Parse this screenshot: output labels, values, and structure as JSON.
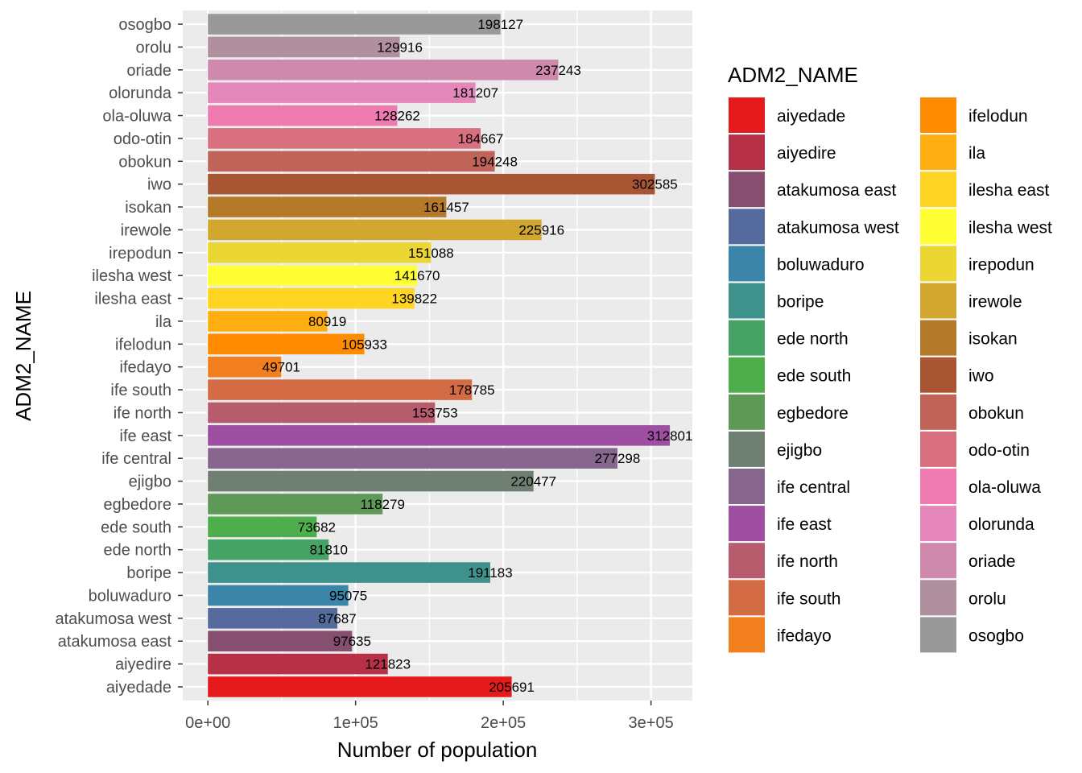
{
  "chart_data": {
    "type": "bar",
    "orientation": "horizontal",
    "title": "",
    "xlabel": "Number of population",
    "ylabel": "ADM2_NAME",
    "xlim": [
      -17000,
      328000
    ],
    "xticks": [
      {
        "value": 0,
        "label": "0e+00"
      },
      {
        "value": 100000,
        "label": "1e+05"
      },
      {
        "value": 200000,
        "label": "2e+05"
      },
      {
        "value": 300000,
        "label": "3e+05"
      }
    ],
    "grid": true,
    "legend": {
      "title": "ADM2_NAME",
      "placement": "right",
      "columns": 2
    },
    "categories": [
      "aiyedade",
      "aiyedire",
      "atakumosa east",
      "atakumosa west",
      "boluwaduro",
      "boripe",
      "ede north",
      "ede south",
      "egbedore",
      "ejigbo",
      "ife central",
      "ife east",
      "ife north",
      "ife south",
      "ifedayo",
      "ifelodun",
      "ila",
      "ilesha east",
      "ilesha west",
      "irepodun",
      "irewole",
      "isokan",
      "iwo",
      "obokun",
      "odo-otin",
      "ola-oluwa",
      "olorunda",
      "oriade",
      "orolu",
      "osogbo"
    ],
    "values": [
      205691,
      121823,
      97635,
      87687,
      95075,
      191183,
      81810,
      73682,
      118279,
      220477,
      277298,
      312801,
      153753,
      178785,
      49701,
      105933,
      80919,
      139822,
      141670,
      151088,
      225916,
      161457,
      302585,
      194248,
      184667,
      128262,
      181207,
      237243,
      129916,
      198127
    ],
    "data_labels": [
      "205691",
      "121823",
      "97635",
      "87687",
      "95075",
      "191183",
      "81810",
      "73682",
      "118279",
      "220477",
      "277298",
      "312801",
      "153753",
      "178785",
      "49701",
      "105933",
      "80919",
      "139822",
      "141670",
      "151088",
      "225916",
      "161457",
      "302585",
      "194248",
      "184667",
      "128262",
      "181207",
      "237243",
      "129916",
      "198127"
    ],
    "colors": [
      "#E41A1C",
      "#B63048",
      "#874F6F",
      "#556B9D",
      "#3A85A8",
      "#3F918C",
      "#47A266",
      "#4DAE4B",
      "#5E9958",
      "#6F7F72",
      "#86668D",
      "#9E4FA2",
      "#B75C6C",
      "#D36B45",
      "#F27F1E",
      "#FF8C00",
      "#FFAE12",
      "#FFD422",
      "#FFFF33",
      "#EBD633",
      "#D1A730",
      "#B5792A",
      "#A85534",
      "#C06359",
      "#D87080",
      "#EE7BB0",
      "#E587BA",
      "#CE89AD",
      "#B0909F",
      "#999999"
    ]
  }
}
